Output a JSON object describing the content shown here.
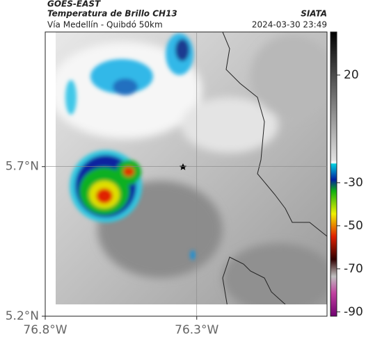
{
  "header": {
    "product": "GOES-EAST",
    "title": "Temperatura de Brillo CH13",
    "source": "SIATA",
    "subtitle": "Vía Medellín - Quibdó 50km",
    "datetime": "2024-03-30 23:49"
  },
  "map": {
    "xlim": [
      -76.8,
      -75.87
    ],
    "ylim": [
      5.2,
      6.15
    ],
    "xticks": [
      {
        "value": -76.8,
        "label": "76.8°W"
      },
      {
        "value": -76.3,
        "label": "76.3°W"
      }
    ],
    "yticks": [
      {
        "value": 5.2,
        "label": "5.2°N"
      },
      {
        "value": 5.7,
        "label": "5.7°N"
      }
    ],
    "grid": true
  },
  "colorbar": {
    "lim": [
      -92,
      40
    ],
    "ticks": [
      20,
      -30,
      -50,
      -70,
      -90
    ]
  }
}
